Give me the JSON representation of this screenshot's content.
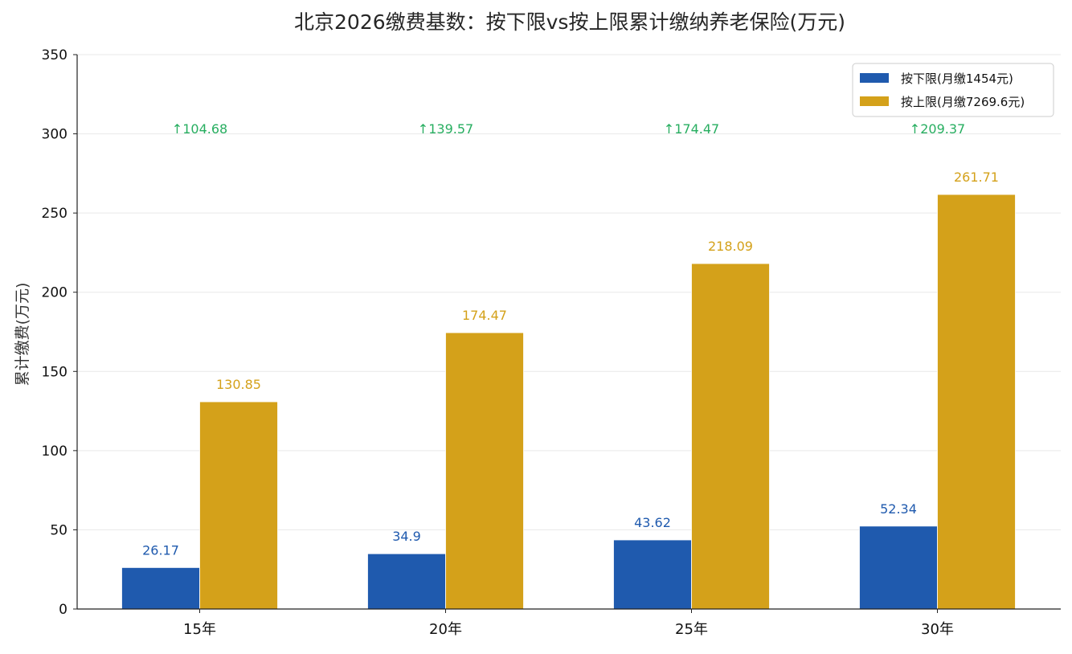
{
  "chart_data": {
    "type": "bar",
    "title": "北京2026缴费基数：按下限vs按上限累计缴纳养老保险(万元)",
    "xlabel": "",
    "ylabel": "累计缴费(万元)",
    "categories": [
      "15年",
      "20年",
      "25年",
      "30年"
    ],
    "series": [
      {
        "name": "按下限(月缴1454元)",
        "values": [
          26.17,
          34.9,
          43.62,
          52.34
        ],
        "color": "#1f5aae"
      },
      {
        "name": "按上限(月缴7269.6元)",
        "values": [
          130.85,
          174.47,
          218.09,
          261.71
        ],
        "color": "#d4a11a"
      }
    ],
    "bar_labels": [
      [
        "26.17",
        "34.9",
        "43.62",
        "52.34"
      ],
      [
        "130.85",
        "174.47",
        "218.09",
        "261.71"
      ]
    ],
    "difference_labels": [
      "↑104.68",
      "↑139.57",
      "↑174.47",
      "↑209.37"
    ],
    "difference_color": "#27ae60",
    "ylim": [
      0,
      350
    ],
    "yticks": [
      0,
      50,
      100,
      150,
      200,
      250,
      300,
      350
    ],
    "grid": "horizontal",
    "legend_position": "top-right"
  }
}
